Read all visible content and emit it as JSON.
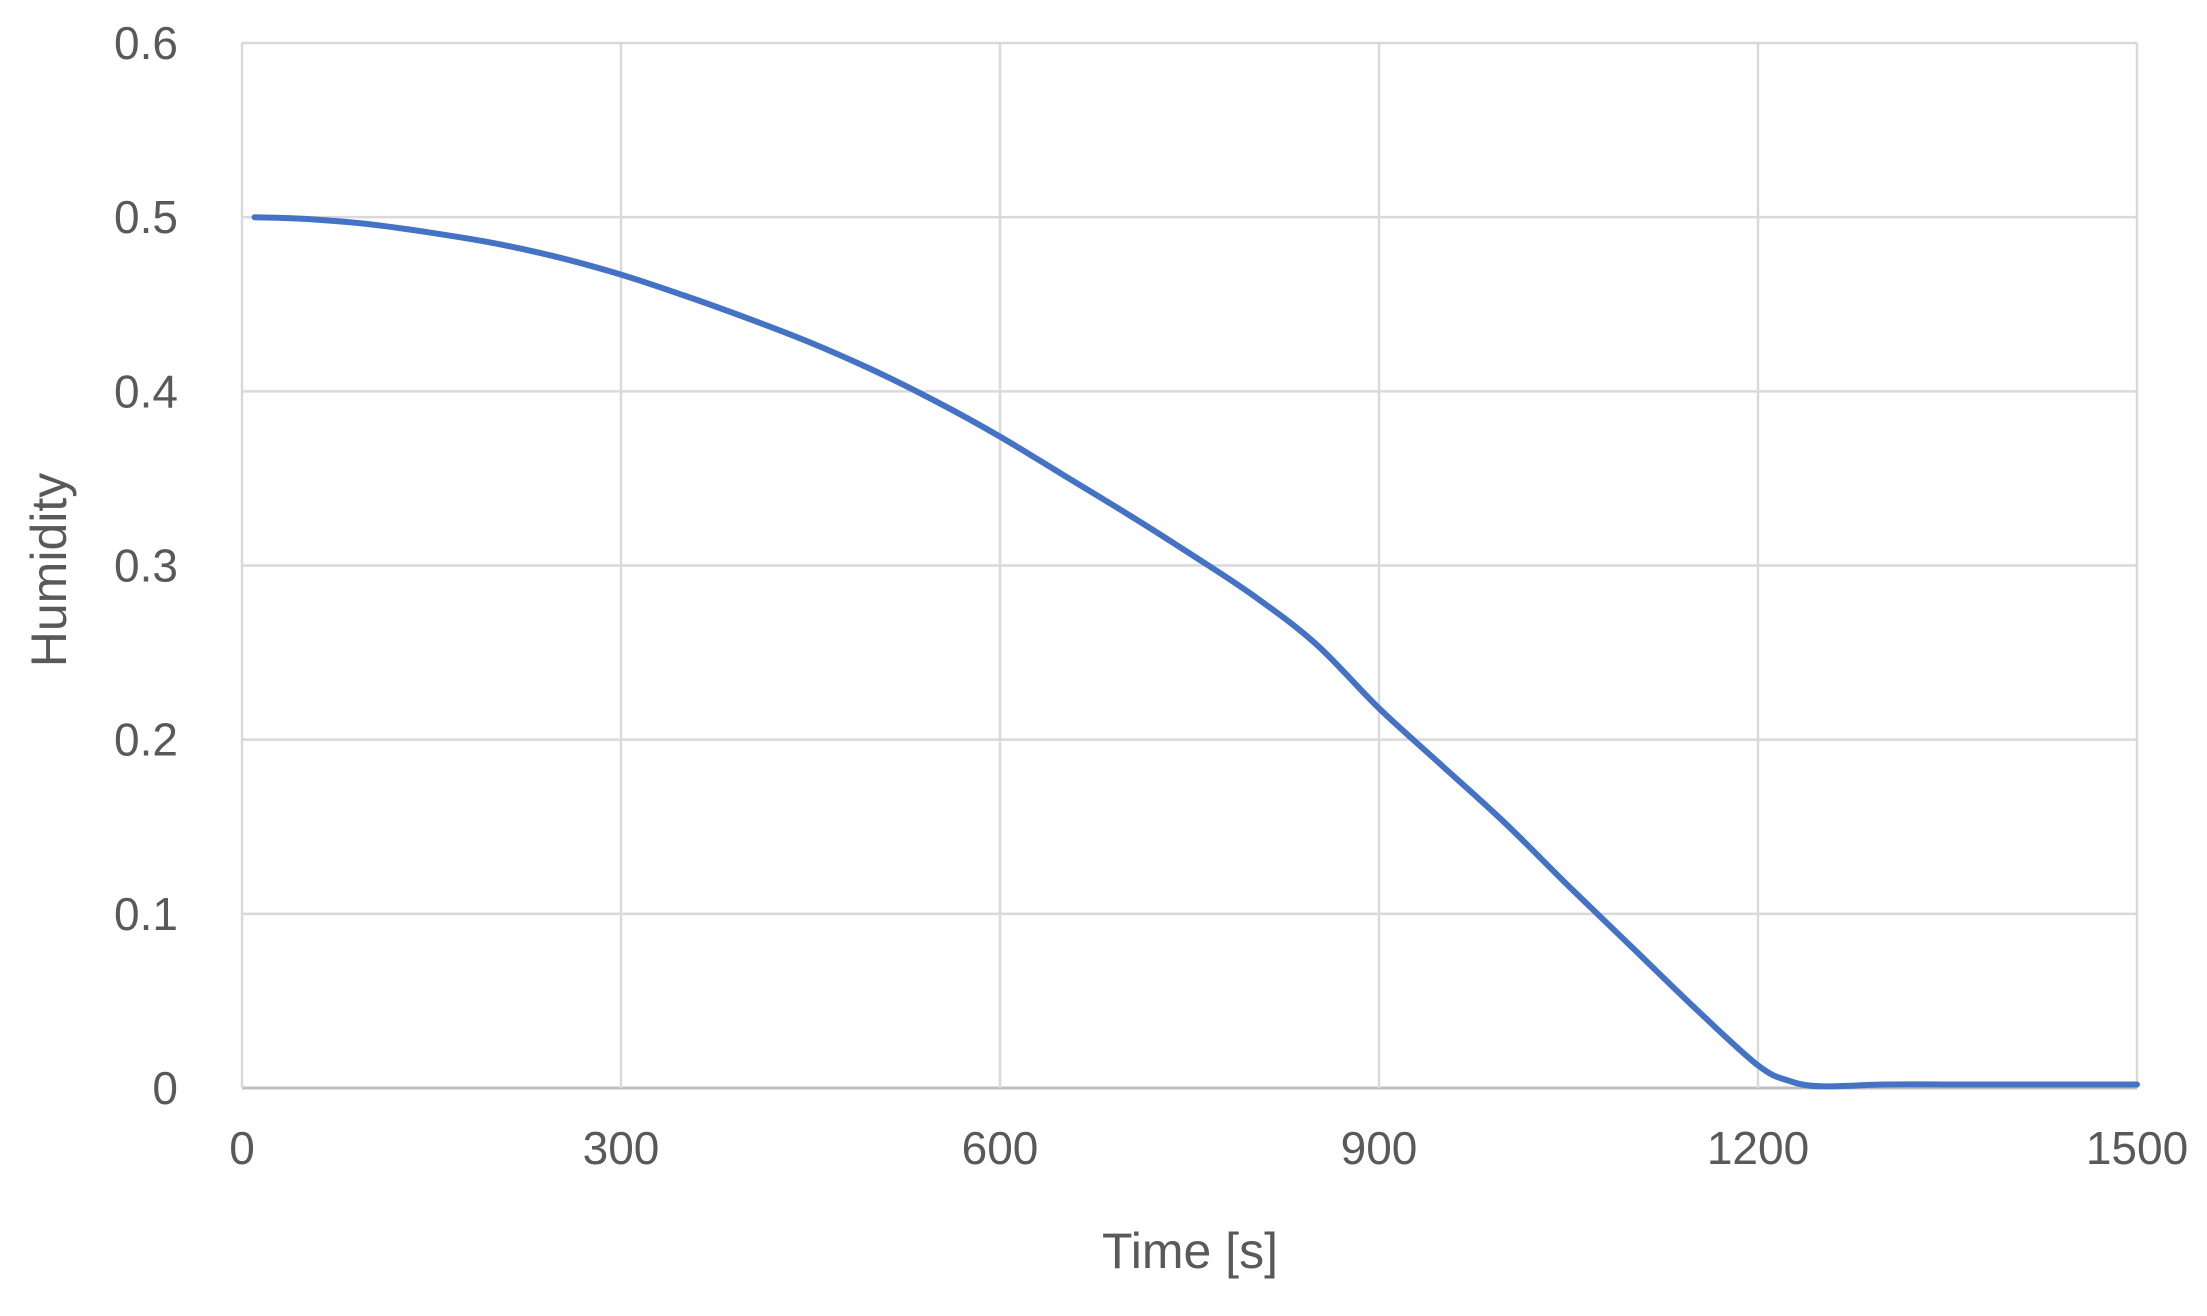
{
  "chart_data": {
    "type": "line",
    "title": "",
    "xlabel": "Time [s]",
    "ylabel": "Humidity",
    "xlim": [
      0,
      1500
    ],
    "ylim": [
      0,
      0.6
    ],
    "x_ticks": [
      "0",
      "300",
      "600",
      "900",
      "1200",
      "1500"
    ],
    "y_ticks": [
      "0",
      "0.1",
      "0.2",
      "0.3",
      "0.4",
      "0.5",
      "0.6"
    ],
    "grid": true,
    "legend": "none",
    "series": [
      {
        "color": "#4472C4",
        "x": [
          10,
          50,
          100,
          150,
          200,
          250,
          300,
          350,
          400,
          450,
          500,
          550,
          600,
          650,
          700,
          750,
          800,
          850,
          900,
          950,
          1000,
          1050,
          1100,
          1150,
          1200,
          1225,
          1250,
          1300,
          1350,
          1400,
          1450,
          1500
        ],
        "y": [
          0.5,
          0.499,
          0.496,
          0.491,
          0.485,
          0.477,
          0.467,
          0.455,
          0.442,
          0.428,
          0.412,
          0.394,
          0.374,
          0.352,
          0.33,
          0.307,
          0.283,
          0.255,
          0.218,
          0.185,
          0.152,
          0.116,
          0.081,
          0.046,
          0.013,
          0.004,
          0.001,
          0.002,
          0.002,
          0.002,
          0.002,
          0.002
        ]
      }
    ]
  }
}
